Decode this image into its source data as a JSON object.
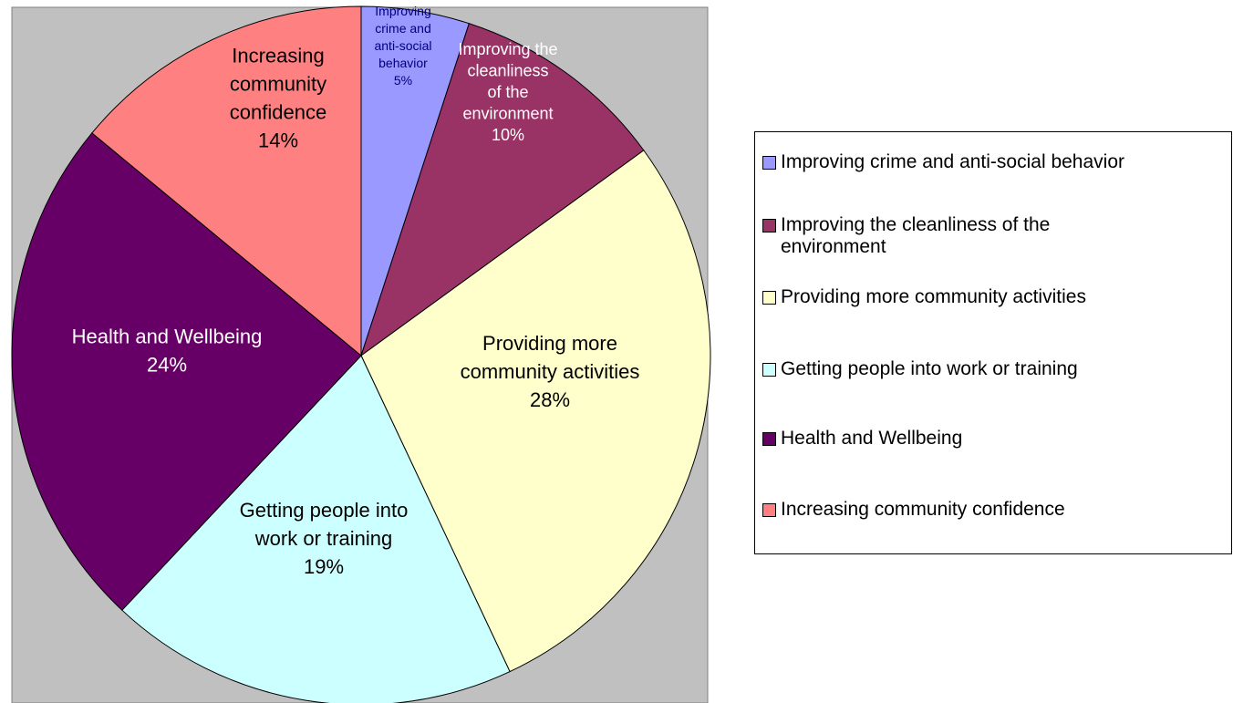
{
  "chart_data": {
    "type": "pie",
    "title": "",
    "slices": [
      {
        "name": "Improving crime and anti-social behavior",
        "value": 5,
        "label_lines": [
          "Improving",
          "crime and",
          "anti-social",
          "behavior",
          "5%"
        ],
        "color": "#9999ff"
      },
      {
        "name": "Improving the cleanliness of the environment",
        "value": 10,
        "label_lines": [
          "Improving the",
          "cleanliness",
          "of the",
          "environment",
          "10%"
        ],
        "color": "#993366"
      },
      {
        "name": "Providing more community activities",
        "value": 28,
        "label_lines": [
          "Providing more",
          "community activities",
          "28%"
        ],
        "color": "#ffffcc"
      },
      {
        "name": "Getting people into work or training",
        "value": 19,
        "label_lines": [
          "Getting people into",
          "work or training",
          "19%"
        ],
        "color": "#ccffff"
      },
      {
        "name": "Health and Wellbeing",
        "value": 24,
        "label_lines": [
          "Health and Wellbeing",
          "24%"
        ],
        "color": "#660066"
      },
      {
        "name": "Increasing community confidence",
        "value": 14,
        "label_lines": [
          "Increasing",
          "community",
          "confidence",
          "14%"
        ],
        "color": "#ff8080"
      }
    ],
    "legend": {
      "placement": "right",
      "items": [
        {
          "text": "Improving crime and anti-social behavior"
        },
        {
          "text": "Improving the cleanliness of the environment"
        },
        {
          "text": "Providing more community activities"
        },
        {
          "text": "Getting people into work or training"
        },
        {
          "text": "Health and Wellbeing"
        },
        {
          "text": "Increasing community confidence"
        }
      ]
    },
    "plot_area_color": "#c0c0c0"
  }
}
